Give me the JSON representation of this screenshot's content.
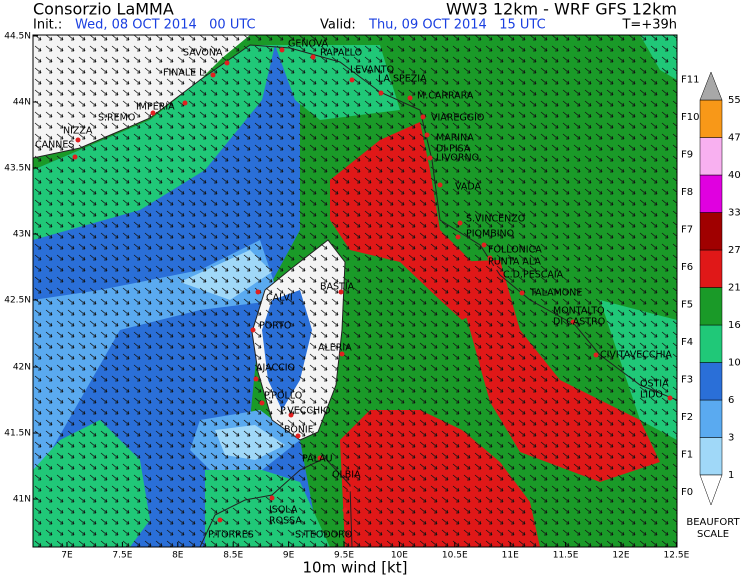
{
  "header": {
    "title": "Consorzio LaMMA",
    "model": "WW3 12km - WRF GFS 12km",
    "init_label": "Init.:",
    "init": "Wed, 08 OCT 2014   00 UTC",
    "valid_label": "Valid:",
    "valid": "Thu, 09 OCT 2014   15 UTC",
    "lead": "T=+39h"
  },
  "map": {
    "lat_ticks": [
      "44.5N",
      "44N",
      "43.5N",
      "43N",
      "42.5N",
      "42N",
      "41.5N",
      "41N"
    ],
    "lon_ticks": [
      "7E",
      "7.5E",
      "8E",
      "8.5E",
      "9E",
      "9.5E",
      "10E",
      "10.5E",
      "11E",
      "11.5E",
      "12E",
      "12.5E"
    ],
    "xlabel": "10m wind [kt]",
    "places": [
      {
        "lines": [
          "GENOVA"
        ]
      },
      {
        "lines": [
          "SAVONA"
        ]
      },
      {
        "lines": [
          "RAPALLO"
        ]
      },
      {
        "lines": [
          "FINALE L."
        ]
      },
      {
        "lines": [
          "LEVANTO"
        ]
      },
      {
        "lines": [
          "LA SPEZIA"
        ]
      },
      {
        "lines": [
          "M.CARRARA"
        ]
      },
      {
        "lines": [
          "IMPERIA"
        ]
      },
      {
        "lines": [
          "S.REMO"
        ]
      },
      {
        "lines": [
          "VIAREGGIO"
        ]
      },
      {
        "lines": [
          "NIZZA"
        ]
      },
      {
        "lines": [
          "CANNES"
        ]
      },
      {
        "lines": [
          "MARINA",
          "DI PISA"
        ]
      },
      {
        "lines": [
          "LIVORNO"
        ]
      },
      {
        "lines": [
          "VADA"
        ]
      },
      {
        "lines": [
          "S.VINCENZO"
        ]
      },
      {
        "lines": [
          "PIOMBINO"
        ]
      },
      {
        "lines": [
          "FOLLONICA"
        ]
      },
      {
        "lines": [
          "PUNTA ALA"
        ]
      },
      {
        "lines": [
          "C.D.PESCAIA"
        ]
      },
      {
        "lines": [
          "BASTIA"
        ]
      },
      {
        "lines": [
          "CALVI"
        ]
      },
      {
        "lines": [
          "TALAMONE"
        ]
      },
      {
        "lines": [
          "MONTALTO",
          "DI CASTRO"
        ]
      },
      {
        "lines": [
          "PORTO"
        ]
      },
      {
        "lines": [
          "ALERIA"
        ]
      },
      {
        "lines": [
          "CIVITAVECCHIA"
        ]
      },
      {
        "lines": [
          "AJACCIO"
        ]
      },
      {
        "lines": [
          "OSTIA",
          "LIDO"
        ]
      },
      {
        "lines": [
          "P.POLLO"
        ]
      },
      {
        "lines": [
          "P.VECCHIO"
        ]
      },
      {
        "lines": [
          "BONIF."
        ]
      },
      {
        "lines": [
          "PALAU"
        ]
      },
      {
        "lines": [
          "OLBIA"
        ]
      },
      {
        "lines": [
          "ISOLA",
          "ROSSA"
        ]
      },
      {
        "lines": [
          "P.TORRES"
        ]
      },
      {
        "lines": [
          "S.TEODORO"
        ]
      }
    ]
  },
  "legend": {
    "forces": [
      "F0",
      "F1",
      "F2",
      "F3",
      "F4",
      "F5",
      "F6",
      "F7",
      "F8",
      "F9",
      "F10",
      "F11"
    ],
    "knots": [
      1,
      3,
      6,
      10,
      16,
      21,
      27,
      33,
      40,
      47,
      55
    ],
    "caption": [
      "BEAUFORT",
      "SCALE"
    ]
  }
}
